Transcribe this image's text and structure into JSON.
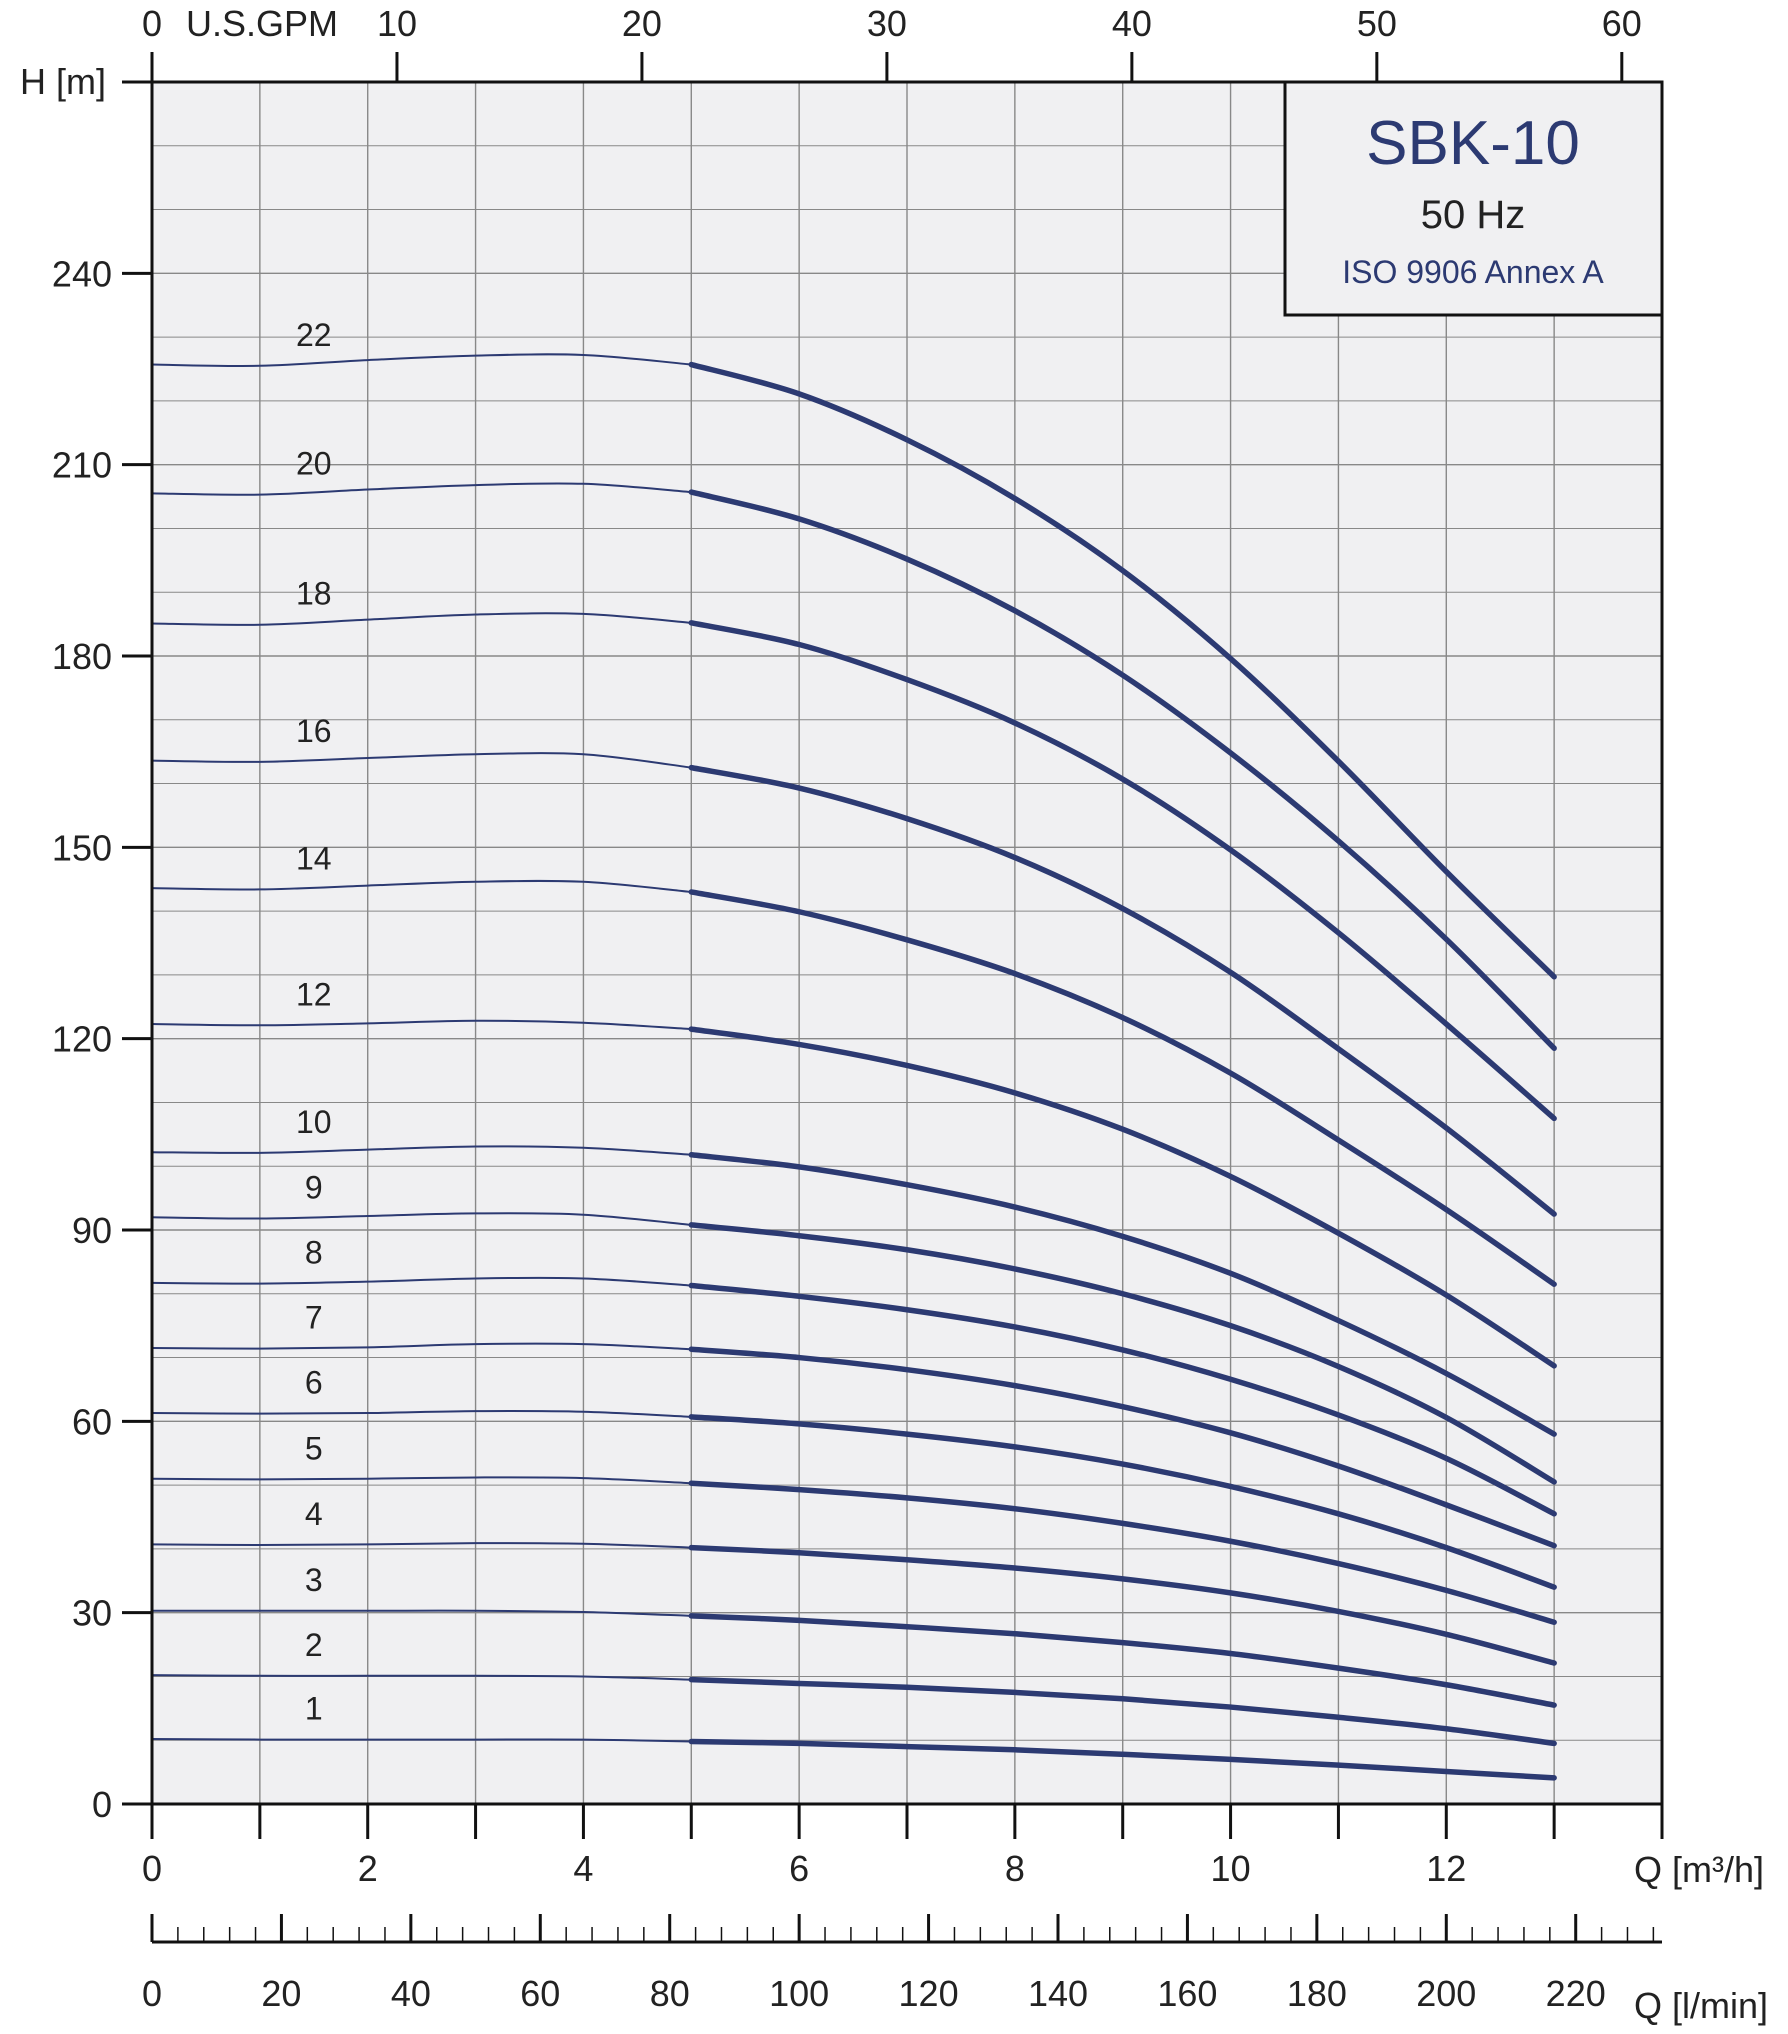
{
  "chart_data": {
    "type": "line",
    "title": "SBK-10",
    "legend": {
      "title": "SBK-10",
      "frequency": "50 Hz",
      "standard": "ISO 9906 Annex A",
      "placement": "top-right"
    },
    "xlabel": "Q [m³/h]",
    "ylabel": "H [m]",
    "top_axis_label": "U.S.GPM",
    "bottom_axis2_label": "Q [l/min]",
    "xlim": [
      0,
      14
    ],
    "ylim": [
      0,
      270
    ],
    "x_ticks": [
      0,
      2,
      4,
      6,
      8,
      10,
      12
    ],
    "y_ticks": [
      0,
      30,
      60,
      90,
      120,
      150,
      180,
      210,
      240
    ],
    "gpm_ticks": [
      0,
      10,
      20,
      30,
      40,
      50,
      60
    ],
    "lmin_ticks": [
      0,
      20,
      40,
      60,
      80,
      100,
      120,
      140,
      160,
      180,
      200,
      220
    ],
    "grid": true,
    "operating_range_start": 5,
    "x": [
      0,
      1,
      2,
      3,
      4,
      5,
      6,
      7,
      8,
      9,
      10,
      11,
      12,
      13
    ],
    "series": [
      {
        "name": "1",
        "values": [
          10.2,
          10.1,
          10.1,
          10.1,
          10.1,
          9.8,
          9.5,
          9.0,
          8.5,
          7.8,
          7.0,
          6.1,
          5.1,
          4.1
        ]
      },
      {
        "name": "2",
        "values": [
          20.2,
          20.1,
          20.1,
          20.1,
          20.0,
          19.5,
          18.9,
          18.3,
          17.5,
          16.5,
          15.2,
          13.6,
          11.8,
          9.5
        ]
      },
      {
        "name": "3",
        "values": [
          30.3,
          30.3,
          30.3,
          30.3,
          30.1,
          29.5,
          28.8,
          27.8,
          26.7,
          25.3,
          23.6,
          21.3,
          18.7,
          15.5
        ]
      },
      {
        "name": "4",
        "values": [
          40.7,
          40.6,
          40.7,
          40.9,
          40.8,
          40.2,
          39.4,
          38.3,
          37.0,
          35.3,
          33.1,
          30.2,
          26.6,
          22.1
        ]
      },
      {
        "name": "5",
        "values": [
          51.0,
          50.9,
          51.0,
          51.2,
          51.1,
          50.3,
          49.3,
          48.0,
          46.3,
          44.0,
          41.2,
          37.7,
          33.5,
          28.5
        ]
      },
      {
        "name": "6",
        "values": [
          61.3,
          61.2,
          61.3,
          61.6,
          61.5,
          60.7,
          59.6,
          58.0,
          56.0,
          53.3,
          49.8,
          45.5,
          40.2,
          34.0
        ]
      },
      {
        "name": "7",
        "values": [
          71.5,
          71.4,
          71.6,
          72.1,
          72.1,
          71.3,
          70.0,
          68.1,
          65.6,
          62.3,
          58.2,
          53.0,
          46.9,
          40.5
        ]
      },
      {
        "name": "8",
        "values": [
          81.7,
          81.6,
          81.9,
          82.4,
          82.4,
          81.3,
          79.6,
          77.5,
          74.8,
          71.2,
          66.6,
          61.0,
          54.2,
          45.5
        ]
      },
      {
        "name": "9",
        "values": [
          92.0,
          91.8,
          92.2,
          92.6,
          92.4,
          90.8,
          89.1,
          86.9,
          83.9,
          80.0,
          75.0,
          68.6,
          60.6,
          50.5
        ]
      },
      {
        "name": "10",
        "values": [
          102.2,
          102.1,
          102.6,
          103.1,
          102.9,
          101.8,
          99.9,
          97.1,
          93.6,
          89.0,
          83.2,
          75.8,
          67.5,
          58.0
        ]
      },
      {
        "name": "12",
        "values": [
          122.3,
          122.1,
          122.4,
          122.8,
          122.5,
          121.5,
          119.1,
          115.8,
          111.5,
          105.8,
          98.4,
          89.5,
          79.8,
          68.7
        ]
      },
      {
        "name": "14",
        "values": [
          143.6,
          143.4,
          144.0,
          144.6,
          144.6,
          143.0,
          139.9,
          135.5,
          130.2,
          123.3,
          114.6,
          104.1,
          93.2,
          81.5
        ]
      },
      {
        "name": "16",
        "values": [
          163.6,
          163.4,
          164.0,
          164.6,
          164.6,
          162.5,
          159.3,
          154.5,
          148.4,
          140.4,
          130.4,
          118.4,
          106.0,
          92.5
        ]
      },
      {
        "name": "18",
        "values": [
          185.1,
          184.9,
          185.7,
          186.5,
          186.6,
          185.2,
          181.8,
          176.3,
          169.5,
          160.7,
          149.6,
          136.6,
          122.3,
          107.5
        ]
      },
      {
        "name": "20",
        "values": [
          205.5,
          205.3,
          206.1,
          206.8,
          207.0,
          205.7,
          201.5,
          195.2,
          187.1,
          177.0,
          164.8,
          151.0,
          135.6,
          118.5
        ]
      },
      {
        "name": "22",
        "values": [
          225.7,
          225.5,
          226.4,
          227.1,
          227.2,
          225.7,
          221.1,
          213.9,
          204.7,
          193.4,
          179.6,
          163.5,
          146.2,
          129.7
        ]
      }
    ]
  },
  "colors": {
    "curve": "#2c3a72",
    "grid": "#888888",
    "plot_bg": "#f0f0f2",
    "axis": "#111111"
  }
}
